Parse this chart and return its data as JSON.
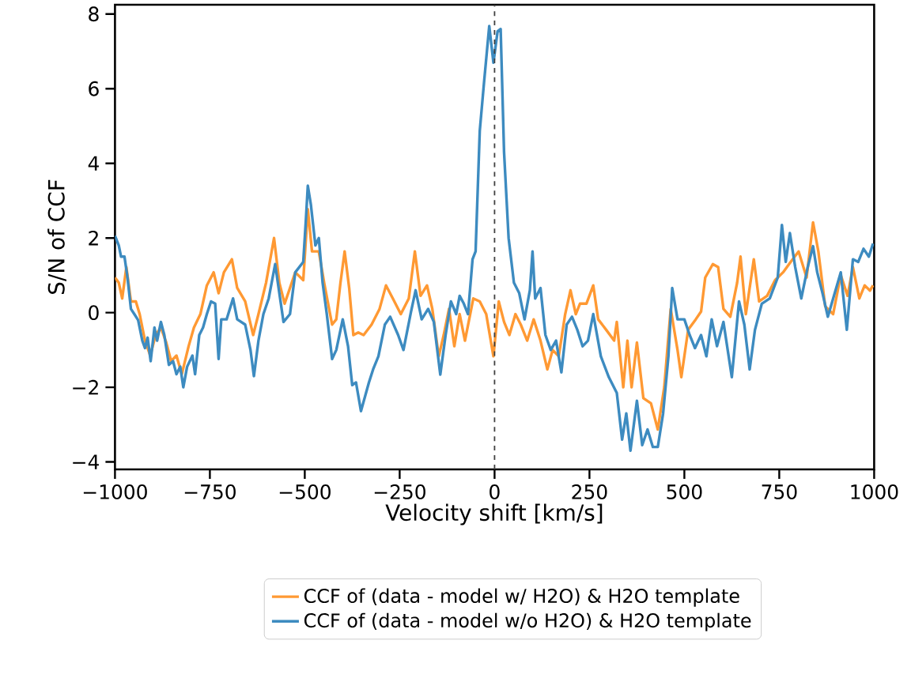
{
  "chart_data": {
    "type": "line",
    "xlabel": "Velocity shift [km/s]",
    "ylabel": "S/N of CCF",
    "xlim": [
      -1000,
      1000
    ],
    "ylim": [
      -4.2,
      8.25
    ],
    "xticks": [
      {
        "value": -1000,
        "label": "−1000"
      },
      {
        "value": -750,
        "label": "−750"
      },
      {
        "value": -500,
        "label": "−500"
      },
      {
        "value": -250,
        "label": "−250"
      },
      0,
      250,
      500,
      750,
      1000
    ],
    "yticks": [
      {
        "value": -4,
        "label": "−4"
      },
      {
        "value": -2,
        "label": "−2"
      },
      0,
      2,
      4,
      6,
      8
    ],
    "legend": "bottom",
    "line_style": "solid",
    "ref_lines": [
      {
        "axis": "x",
        "value": 0,
        "color": "#404040",
        "line_style": "dashed"
      }
    ],
    "series": [
      {
        "name": "CCF of (data - model w/ H2O) & H2O template",
        "color": "#ff9933",
        "x": [
          -1000,
          -990,
          -981,
          -970,
          -958,
          -945,
          -935,
          -921,
          -907,
          -893,
          -879,
          -865,
          -852,
          -838,
          -824,
          -806,
          -792,
          -775,
          -758,
          -740,
          -727,
          -713,
          -692,
          -678,
          -657,
          -636,
          -622,
          -602,
          -581,
          -567,
          -553,
          -525,
          -504,
          -492,
          -481,
          -463,
          -449,
          -428,
          -417,
          -406,
          -395,
          -383,
          -372,
          -359,
          -345,
          -324,
          -303,
          -286,
          -268,
          -247,
          -226,
          -210,
          -195,
          -178,
          -164,
          -147,
          -134,
          -120,
          -106,
          -92,
          -78,
          -56,
          -39,
          -22,
          -3,
          11,
          25,
          39,
          55,
          69,
          86,
          103,
          121,
          139,
          153,
          169,
          186,
          200,
          214,
          225,
          242,
          260,
          273,
          294,
          315,
          322,
          339,
          350,
          361,
          375,
          392,
          412,
          430,
          447,
          464,
          482,
          492,
          510,
          530,
          544,
          555,
          575,
          589,
          603,
          621,
          639,
          648,
          662,
          683,
          697,
          718,
          739,
          760,
          780,
          801,
          822,
          839,
          853,
          871,
          892,
          912,
          930,
          944,
          961,
          975,
          989,
          997
        ],
        "values": [
          0.94,
          0.8,
          0.38,
          1.22,
          0.3,
          0.3,
          -0.04,
          -0.75,
          -1.15,
          -0.6,
          -0.4,
          -0.8,
          -1.3,
          -1.15,
          -1.65,
          -0.9,
          -0.4,
          -0.04,
          0.73,
          1.08,
          0.52,
          1.08,
          1.43,
          0.66,
          0.3,
          -0.6,
          -0.04,
          0.8,
          2.0,
          0.8,
          0.24,
          1.08,
          0.87,
          2.77,
          1.64,
          1.64,
          0.8,
          -0.32,
          -0.18,
          0.8,
          1.64,
          0.66,
          -0.6,
          -0.53,
          -0.6,
          -0.32,
          0.1,
          0.73,
          0.38,
          -0.04,
          0.38,
          1.64,
          0.45,
          0.73,
          0.1,
          -1.17,
          -0.6,
          0.1,
          -0.9,
          -0.04,
          -0.75,
          0.38,
          0.3,
          -0.04,
          -1.17,
          0.3,
          -0.25,
          -0.6,
          -0.04,
          -0.32,
          -0.75,
          -0.18,
          -0.75,
          -1.52,
          -1.0,
          -1.17,
          -0.04,
          0.6,
          -0.04,
          0.24,
          0.24,
          0.73,
          -0.18,
          -0.46,
          -0.75,
          -0.25,
          -2.0,
          -0.75,
          -2.0,
          -0.8,
          -2.29,
          -2.43,
          -3.13,
          -2.0,
          0.1,
          -1.0,
          -1.73,
          -0.46,
          -0.18,
          0.03,
          0.94,
          1.3,
          1.22,
          0.1,
          -0.11,
          0.8,
          1.5,
          -0.04,
          1.43,
          0.3,
          0.45,
          0.87,
          1.08,
          1.36,
          1.64,
          0.94,
          2.42,
          1.64,
          0.17,
          -0.04,
          1.01,
          0.45,
          1.22,
          0.38,
          0.73,
          0.59,
          0.73
        ]
      },
      {
        "name": "CCF of (data - model w/o H2O) & H2O template",
        "color": "#3d8bc0",
        "x": [
          -1000,
          -990,
          -984,
          -975,
          -967,
          -958,
          -949,
          -939,
          -928,
          -921,
          -914,
          -906,
          -896,
          -889,
          -879,
          -870,
          -858,
          -847,
          -838,
          -828,
          -820,
          -810,
          -796,
          -789,
          -778,
          -768,
          -758,
          -747,
          -736,
          -727,
          -720,
          -706,
          -689,
          -678,
          -657,
          -643,
          -634,
          -622,
          -609,
          -595,
          -578,
          -567,
          -556,
          -539,
          -525,
          -504,
          -497,
          -492,
          -484,
          -472,
          -463,
          -453,
          -442,
          -428,
          -417,
          -400,
          -386,
          -375,
          -365,
          -352,
          -331,
          -320,
          -306,
          -289,
          -275,
          -254,
          -240,
          -220,
          -208,
          -192,
          -175,
          -160,
          -143,
          -129,
          -115,
          -101,
          -92,
          -81,
          -70,
          -58,
          -50,
          -39,
          -28,
          -14,
          -3,
          8,
          16,
          25,
          37,
          51,
          65,
          79,
          93,
          100,
          107,
          121,
          134,
          148,
          162,
          176,
          190,
          204,
          218,
          232,
          246,
          260,
          280,
          301,
          322,
          336,
          347,
          358,
          375,
          389,
          403,
          417,
          430,
          444,
          458,
          468,
          482,
          500,
          514,
          528,
          544,
          558,
          572,
          586,
          603,
          625,
          644,
          658,
          672,
          686,
          704,
          725,
          746,
          757,
          767,
          778,
          792,
          808,
          825,
          839,
          850,
          864,
          878,
          892,
          912,
          928,
          944,
          958,
          972,
          986,
          997
        ],
        "values": [
          2.06,
          1.8,
          1.5,
          1.5,
          0.94,
          0.1,
          -0.04,
          -0.2,
          -0.75,
          -0.95,
          -0.67,
          -1.3,
          -0.4,
          -0.75,
          -0.25,
          -0.6,
          -1.4,
          -1.3,
          -1.65,
          -1.45,
          -2.0,
          -1.45,
          -1.15,
          -1.65,
          -0.6,
          -0.4,
          -0.04,
          0.3,
          0.24,
          -1.24,
          -0.18,
          -0.18,
          0.38,
          -0.18,
          -0.32,
          -1.0,
          -1.7,
          -0.75,
          -0.04,
          0.38,
          1.3,
          0.52,
          -0.25,
          -0.04,
          1.08,
          1.36,
          2.5,
          3.4,
          2.9,
          1.8,
          2.0,
          0.8,
          -0.04,
          -1.24,
          -1.0,
          -0.18,
          -0.9,
          -1.94,
          -1.87,
          -2.64,
          -1.87,
          -1.52,
          -1.17,
          -0.32,
          -0.11,
          -0.6,
          -1.0,
          0.03,
          0.6,
          -0.18,
          0.1,
          -0.25,
          -1.66,
          -0.6,
          0.3,
          -0.04,
          0.45,
          0.24,
          -0.04,
          1.43,
          1.64,
          4.87,
          6.14,
          7.68,
          6.7,
          7.54,
          7.6,
          4.3,
          2.0,
          0.8,
          0.52,
          -0.18,
          0.6,
          1.64,
          0.38,
          0.66,
          -0.6,
          -1.0,
          -0.75,
          -1.6,
          -0.32,
          -0.11,
          -0.46,
          -0.9,
          -0.75,
          -0.04,
          -1.17,
          -1.73,
          -2.15,
          -3.4,
          -2.7,
          -3.7,
          -2.36,
          -3.55,
          -3.13,
          -3.6,
          -3.6,
          -2.7,
          -1.17,
          0.66,
          -0.18,
          -0.18,
          -0.6,
          -0.95,
          -0.6,
          -1.17,
          -0.18,
          -0.9,
          -0.25,
          -1.73,
          0.3,
          -0.32,
          -1.52,
          -0.46,
          0.24,
          0.38,
          0.94,
          2.35,
          1.36,
          2.13,
          1.22,
          0.38,
          1.22,
          1.78,
          1.08,
          0.52,
          -0.11,
          0.38,
          1.08,
          -0.46,
          1.43,
          1.36,
          1.71,
          1.5,
          1.85
        ]
      }
    ]
  }
}
